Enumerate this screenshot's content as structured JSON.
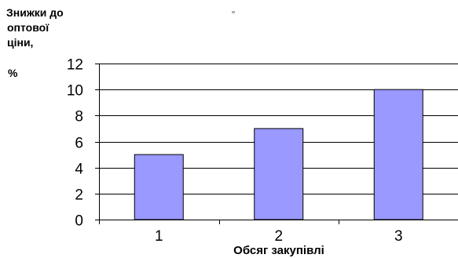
{
  "chart_data": {
    "type": "bar",
    "categories": [
      "1",
      "2",
      "3"
    ],
    "values": [
      5,
      7,
      10
    ],
    "ylabel_lines": [
      "Знижки до",
      "оптової",
      "ціни,",
      "%"
    ],
    "xlabel": "Обсяг закупівлі",
    "ylim": [
      0,
      12
    ],
    "yticks": [
      "0",
      "2",
      "4",
      "6",
      "8",
      "10",
      "12"
    ],
    "grid": true,
    "bar_color": "#9999ff",
    "bar_edge_color": "#000000",
    "axis_color": "#000000"
  }
}
